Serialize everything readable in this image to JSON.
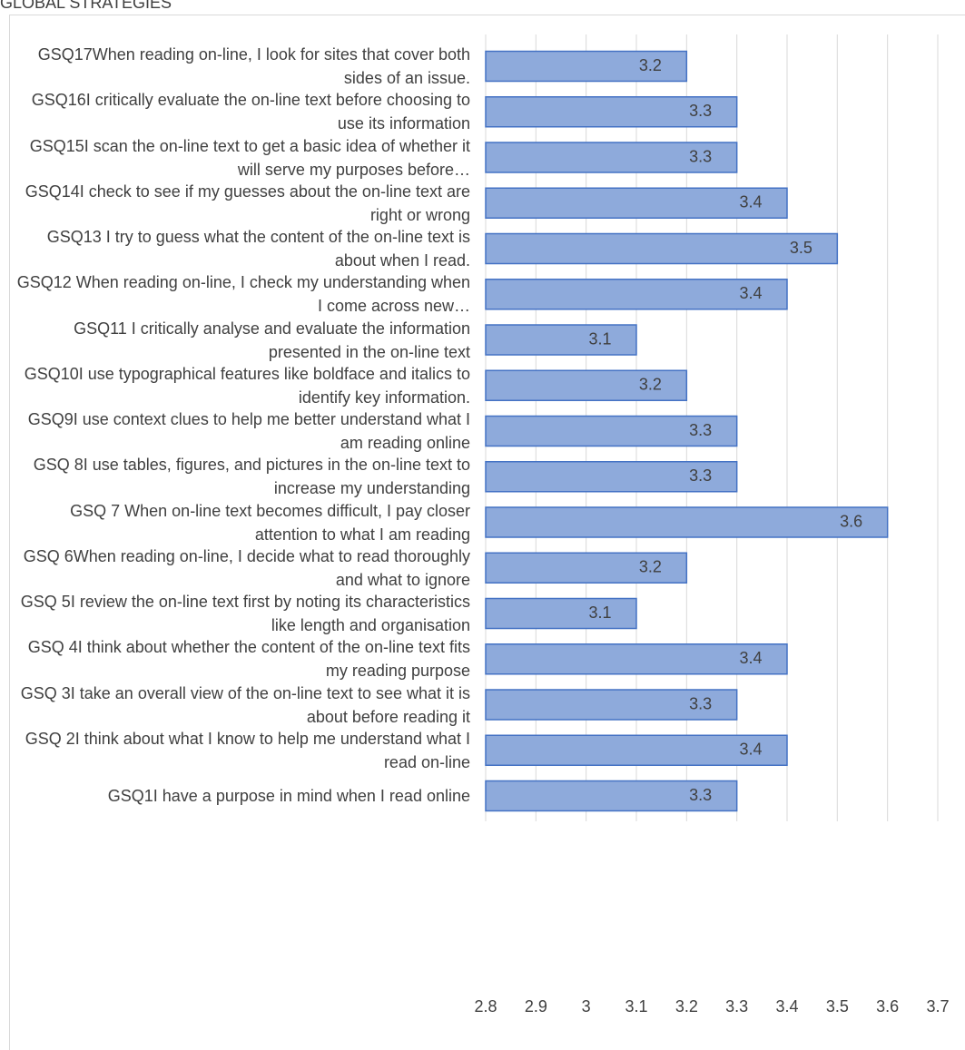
{
  "chart_data": {
    "type": "barh",
    "title": "GLOBAL STRATEGIES",
    "categories": [
      "GSQ17When reading on-line, I look for sites that cover both sides of an issue.",
      "GSQ16I critically evaluate the on-line text before choosing to use its information",
      "GSQ15I scan the on-line text to get a basic idea of whether it will serve my purposes before…",
      "GSQ14I check to see if my guesses about the on-line text are right or wrong",
      "GSQ13  I try to guess what the content of the on-line text is about when I read.",
      "GSQ12 When reading on-line, I check my understanding when I come across new…",
      "GSQ11 I critically analyse and evaluate the information presented in the on-line text",
      "GSQ10I use typographical features like boldface and italics to identify key information.",
      "GSQ9I use context clues to help me better understand what I am reading online",
      "GSQ 8I use tables, figures, and pictures in the on-line text to increase my understanding",
      "GSQ 7 When on-line text becomes difficult, I pay closer attention to what I am reading",
      "GSQ 6When reading on-line, I decide what to read thoroughly and what to ignore",
      "GSQ 5I review the on-line text first by noting its characteristics like length and organisation",
      "GSQ 4I think about whether the content of the on-line text fits my reading purpose",
      "GSQ 3I take an overall view of the on-line text to see what it is about before reading it",
      "GSQ 2I think about what I know to help me understand what I read on-line",
      "GSQ1I have a purpose in mind when I read online"
    ],
    "values": [
      3.2,
      3.3,
      3.3,
      3.4,
      3.5,
      3.4,
      3.1,
      3.2,
      3.3,
      3.3,
      3.6,
      3.2,
      3.1,
      3.4,
      3.3,
      3.4,
      3.3
    ],
    "color": "#8eaadb",
    "xlim": [
      2.8,
      3.7
    ],
    "xticks": [
      2.8,
      2.9,
      3,
      3.1,
      3.2,
      3.3,
      3.4,
      3.5,
      3.6,
      3.7
    ],
    "grid": true
  }
}
